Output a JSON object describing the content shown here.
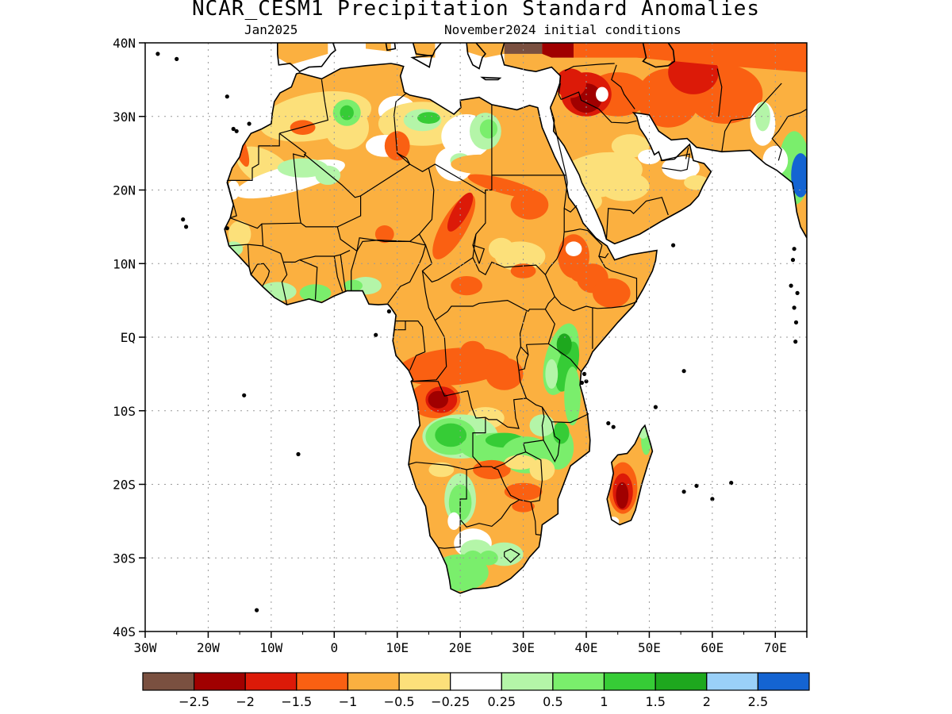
{
  "map": {
    "title": "NCAR_CESM1 Precipitation Standard Anomalies",
    "valid_month": "Jan2025",
    "initial_conditions": "November2024 initial conditions",
    "lat_labels": [
      "40N",
      "30N",
      "20N",
      "10N",
      "EQ",
      "10S",
      "20S",
      "30S",
      "40S"
    ],
    "lon_labels": [
      "30W",
      "20W",
      "10W",
      "0",
      "10E",
      "20E",
      "30E",
      "40E",
      "50E",
      "60E",
      "70E"
    ],
    "lat_range": [
      -40,
      40
    ],
    "lon_range": [
      -30,
      75
    ],
    "gridlines": "dotted",
    "region": "Africa and Arabian Peninsula"
  },
  "colorbar": {
    "labels": [
      "−2.5",
      "−2",
      "−1.5",
      "−1",
      "−0.5",
      "−0.25",
      "0.25",
      "0.5",
      "1",
      "1.5",
      "2",
      "2.5"
    ],
    "colors": [
      "#7a5040",
      "#a00000",
      "#dc1a08",
      "#fa6012",
      "#fbb040",
      "#fce07a",
      "#ffffff",
      "#b4f5a8",
      "#7aee6c",
      "#36cc36",
      "#1ea81e",
      "#9ad0f8",
      "#1464d2"
    ]
  }
}
